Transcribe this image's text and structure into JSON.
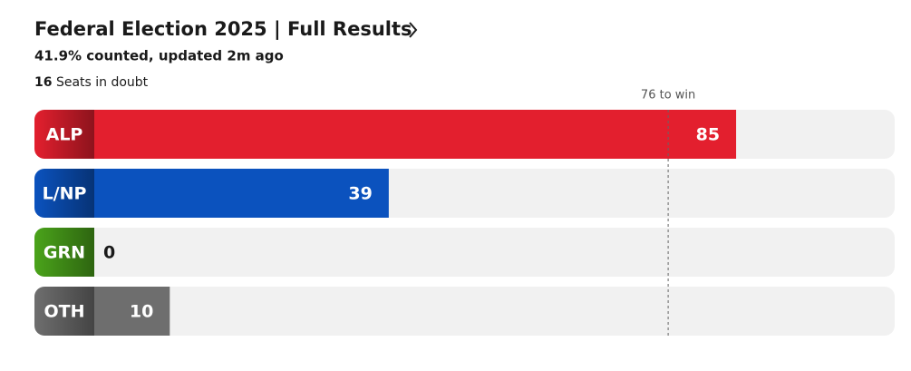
{
  "chart_data": {
    "type": "bar",
    "title": "Federal Election 2025 | Full Results",
    "subtitle": "41.9% counted, updated 2m ago",
    "in_doubt": 16,
    "in_doubt_text": "Seats in doubt",
    "target": 76,
    "target_label": "76 to win",
    "categories": [
      "ALP",
      "L/NP",
      "GRN",
      "OTH"
    ],
    "values": [
      85,
      39,
      0,
      10
    ],
    "colors": [
      "#e31f2e",
      "#0b52be",
      "#4aa31a",
      "#6e6e6e"
    ],
    "xlim": [
      0,
      106
    ]
  }
}
